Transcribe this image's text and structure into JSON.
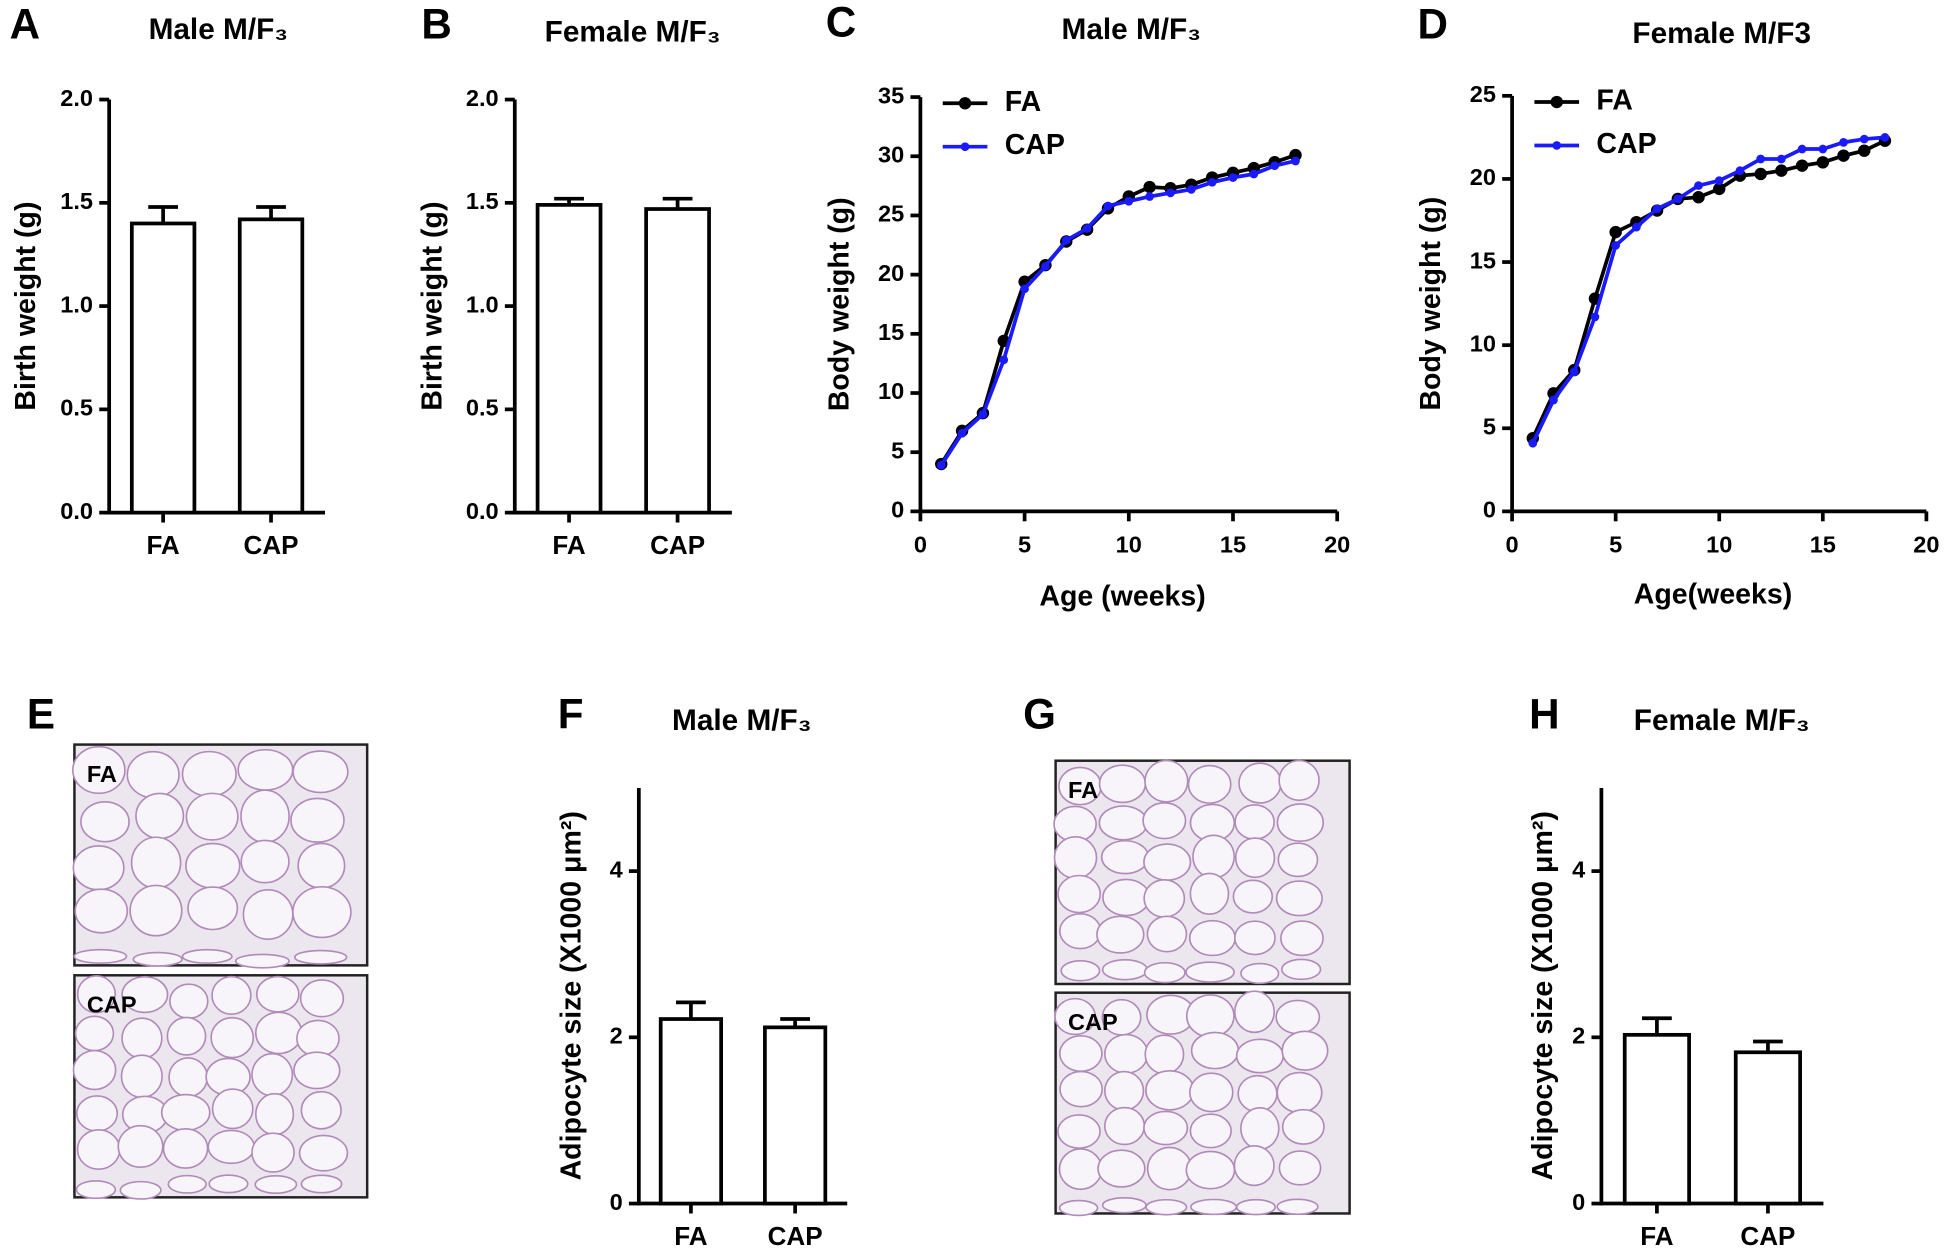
{
  "chart_data": [
    {
      "panel": "A",
      "type": "bar",
      "title": "Male M/F₃",
      "ylabel": "Birth weight (g)",
      "categories": [
        "FA",
        "CAP"
      ],
      "values": [
        1.4,
        1.42
      ],
      "errors": [
        0.08,
        0.06
      ],
      "color": "#ffffff",
      "ylim": [
        0,
        2
      ],
      "yticks": [
        {
          "value": 0,
          "label": "0.0"
        },
        0.5,
        {
          "value": 1,
          "label": "1.0"
        },
        1.5,
        {
          "value": 2,
          "label": "2.0"
        }
      ],
      "grid": false
    },
    {
      "panel": "B",
      "type": "bar",
      "title": "Female M/F₃",
      "ylabel": "Birth weight (g)",
      "categories": [
        "FA",
        "CAP"
      ],
      "values": [
        1.49,
        1.47
      ],
      "errors": [
        0.03,
        0.05
      ],
      "color": "#ffffff",
      "ylim": [
        0,
        2
      ],
      "yticks": [
        {
          "value": 0,
          "label": "0.0"
        },
        0.5,
        {
          "value": 1,
          "label": "1.0"
        },
        1.5,
        {
          "value": 2,
          "label": "2.0"
        }
      ],
      "grid": false
    },
    {
      "panel": "C",
      "type": "line",
      "title": "Male M/F₃",
      "xlabel": "Age (weeks)",
      "ylabel": "Body weight (g)",
      "x": [
        1,
        2,
        3,
        4,
        5,
        6,
        7,
        8,
        9,
        10,
        11,
        12,
        13,
        14,
        15,
        16,
        17,
        18
      ],
      "series": [
        {
          "name": "FA",
          "color": "#000000",
          "values": [
            4.0,
            6.8,
            8.3,
            14.4,
            19.4,
            20.8,
            22.8,
            23.8,
            25.6,
            26.6,
            27.4,
            27.3,
            27.6,
            28.2,
            28.6,
            29.0,
            29.5,
            30.1
          ]
        },
        {
          "name": "CAP",
          "color": "#1a1aff",
          "values": [
            3.9,
            6.6,
            8.2,
            12.8,
            18.8,
            20.7,
            22.9,
            23.9,
            25.8,
            26.2,
            26.6,
            26.9,
            27.2,
            27.8,
            28.2,
            28.5,
            29.2,
            29.6
          ]
        }
      ],
      "xlim": [
        0,
        20
      ],
      "xticks": [
        0,
        5,
        10,
        15,
        20
      ],
      "ylim": [
        0,
        35
      ],
      "yticks": [
        0,
        5,
        10,
        15,
        20,
        25,
        30,
        35
      ],
      "grid": false,
      "legend": "top-left"
    },
    {
      "panel": "D",
      "type": "line",
      "title": "Female M/F3",
      "xlabel": "Age(weeks)",
      "ylabel": "Body weight (g)",
      "x": [
        1,
        2,
        3,
        4,
        5,
        6,
        7,
        8,
        9,
        10,
        11,
        12,
        13,
        14,
        15,
        16,
        17,
        18
      ],
      "series": [
        {
          "name": "FA",
          "color": "#000000",
          "values": [
            4.4,
            7.1,
            8.5,
            12.8,
            16.8,
            17.4,
            18.1,
            18.8,
            18.9,
            19.4,
            20.2,
            20.3,
            20.5,
            20.8,
            21.0,
            21.4,
            21.7,
            22.3
          ]
        },
        {
          "name": "CAP",
          "color": "#1a1aff",
          "values": [
            4.1,
            6.7,
            8.4,
            11.7,
            16.0,
            17.1,
            18.2,
            18.8,
            19.6,
            19.9,
            20.5,
            21.2,
            21.2,
            21.8,
            21.8,
            22.2,
            22.4,
            22.5
          ]
        }
      ],
      "xlim": [
        0,
        20
      ],
      "xticks": [
        0,
        5,
        10,
        15,
        20
      ],
      "ylim": [
        0,
        25
      ],
      "yticks": [
        0,
        5,
        10,
        15,
        20,
        25
      ],
      "grid": false,
      "legend": "top-left"
    },
    {
      "panel": "F",
      "type": "bar",
      "title": "Male M/F₃",
      "ylabel": "Adipocyte size (X1000 μm²)",
      "categories": [
        "FA",
        "CAP"
      ],
      "values": [
        2.22,
        2.12
      ],
      "errors": [
        0.2,
        0.1
      ],
      "color": "#ffffff",
      "ylim": [
        0,
        5
      ],
      "yticks": [
        0,
        2,
        4
      ],
      "grid": false
    },
    {
      "panel": "H",
      "type": "bar",
      "title": "Female M/F₃",
      "ylabel": "Adipocyte size (X1000 μm²)",
      "categories": [
        "FA",
        "CAP"
      ],
      "values": [
        2.03,
        1.82
      ],
      "errors": [
        0.2,
        0.13
      ],
      "color": "#ffffff",
      "ylim": [
        0,
        5
      ],
      "yticks": [
        0,
        2,
        4
      ],
      "grid": false
    }
  ],
  "images": [
    {
      "panel": "E",
      "labels": [
        "FA",
        "CAP"
      ]
    },
    {
      "panel": "G",
      "labels": [
        "FA",
        "CAP"
      ]
    }
  ]
}
